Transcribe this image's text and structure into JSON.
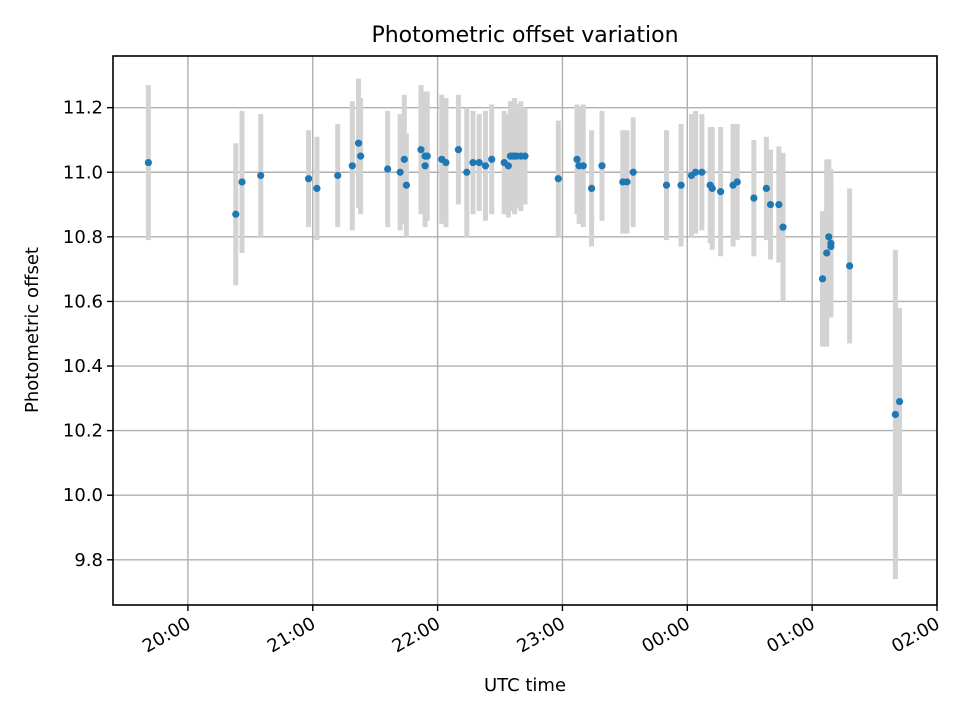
{
  "chart_data": {
    "type": "scatter",
    "title": "Photometric offset variation",
    "xlabel": "UTC time",
    "ylabel": "Photometric offset",
    "x_ticks": [
      "20:00",
      "21:00",
      "22:00",
      "23:00",
      "00:00",
      "01:00",
      "02:00"
    ],
    "y_ticks": [
      "9.8",
      "10.0",
      "10.2",
      "10.4",
      "10.6",
      "10.8",
      "11.0",
      "11.2"
    ],
    "xlim": [
      "19:24",
      "02:00"
    ],
    "ylim": [
      9.66,
      11.36
    ],
    "grid": true,
    "colors": {
      "point": "#1f77b4",
      "errorbar": "#d3d3d3"
    },
    "series": [
      {
        "x": [
          "19:41",
          "20:23",
          "20:26",
          "20:35",
          "20:58",
          "21:02",
          "21:12",
          "21:19",
          "21:22",
          "21:23",
          "21:36",
          "21:42",
          "21:44",
          "21:45",
          "21:52",
          "21:54",
          "21:54",
          "21:55",
          "22:02",
          "22:04",
          "22:10",
          "22:14",
          "22:17",
          "22:20",
          "22:23",
          "22:26",
          "22:32",
          "22:34",
          "22:35",
          "22:36",
          "22:37",
          "22:38",
          "22:40",
          "22:42",
          "22:58",
          "23:07",
          "23:08",
          "23:10",
          "23:14",
          "23:19",
          "23:29",
          "23:31",
          "23:34",
          "23:50",
          "23:57",
          "24:02",
          "24:04",
          "24:07",
          "24:11",
          "24:12",
          "24:16",
          "24:22",
          "24:24",
          "24:32",
          "24:38",
          "24:40",
          "24:44",
          "24:46",
          "25:05",
          "25:07",
          "25:08",
          "25:09",
          "25:09",
          "25:18",
          "25:40",
          "25:42"
        ],
        "y": [
          11.03,
          10.87,
          10.97,
          10.99,
          10.98,
          10.95,
          10.99,
          11.02,
          11.09,
          11.05,
          11.01,
          11.0,
          11.04,
          10.96,
          11.07,
          11.05,
          11.02,
          11.05,
          11.04,
          11.03,
          11.07,
          11.0,
          11.03,
          11.03,
          11.02,
          11.04,
          11.03,
          11.02,
          11.05,
          11.05,
          11.05,
          11.05,
          11.05,
          11.05,
          10.98,
          11.04,
          11.02,
          11.02,
          10.95,
          11.02,
          10.97,
          10.97,
          11.0,
          10.96,
          10.96,
          10.99,
          11.0,
          11.0,
          10.96,
          10.95,
          10.94,
          10.96,
          10.97,
          10.92,
          10.95,
          10.9,
          10.9,
          10.83,
          10.67,
          10.75,
          10.8,
          10.78,
          10.77,
          10.71,
          10.25,
          10.29
        ],
        "err": [
          0.24,
          0.22,
          0.22,
          0.19,
          0.15,
          0.16,
          0.16,
          0.2,
          0.2,
          0.18,
          0.18,
          0.18,
          0.2,
          0.16,
          0.2,
          0.2,
          0.19,
          0.2,
          0.2,
          0.2,
          0.17,
          0.2,
          0.16,
          0.15,
          0.17,
          0.17,
          0.16,
          0.16,
          0.17,
          0.17,
          0.18,
          0.16,
          0.17,
          0.15,
          0.18,
          0.17,
          0.18,
          0.19,
          0.18,
          0.17,
          0.16,
          0.16,
          0.17,
          0.17,
          0.19,
          0.19,
          0.19,
          0.18,
          0.18,
          0.19,
          0.2,
          0.19,
          0.18,
          0.18,
          0.16,
          0.17,
          0.18,
          0.23,
          0.21,
          0.29,
          0.24,
          0.23,
          0.21,
          0.24,
          0.51,
          0.29
        ]
      }
    ]
  }
}
